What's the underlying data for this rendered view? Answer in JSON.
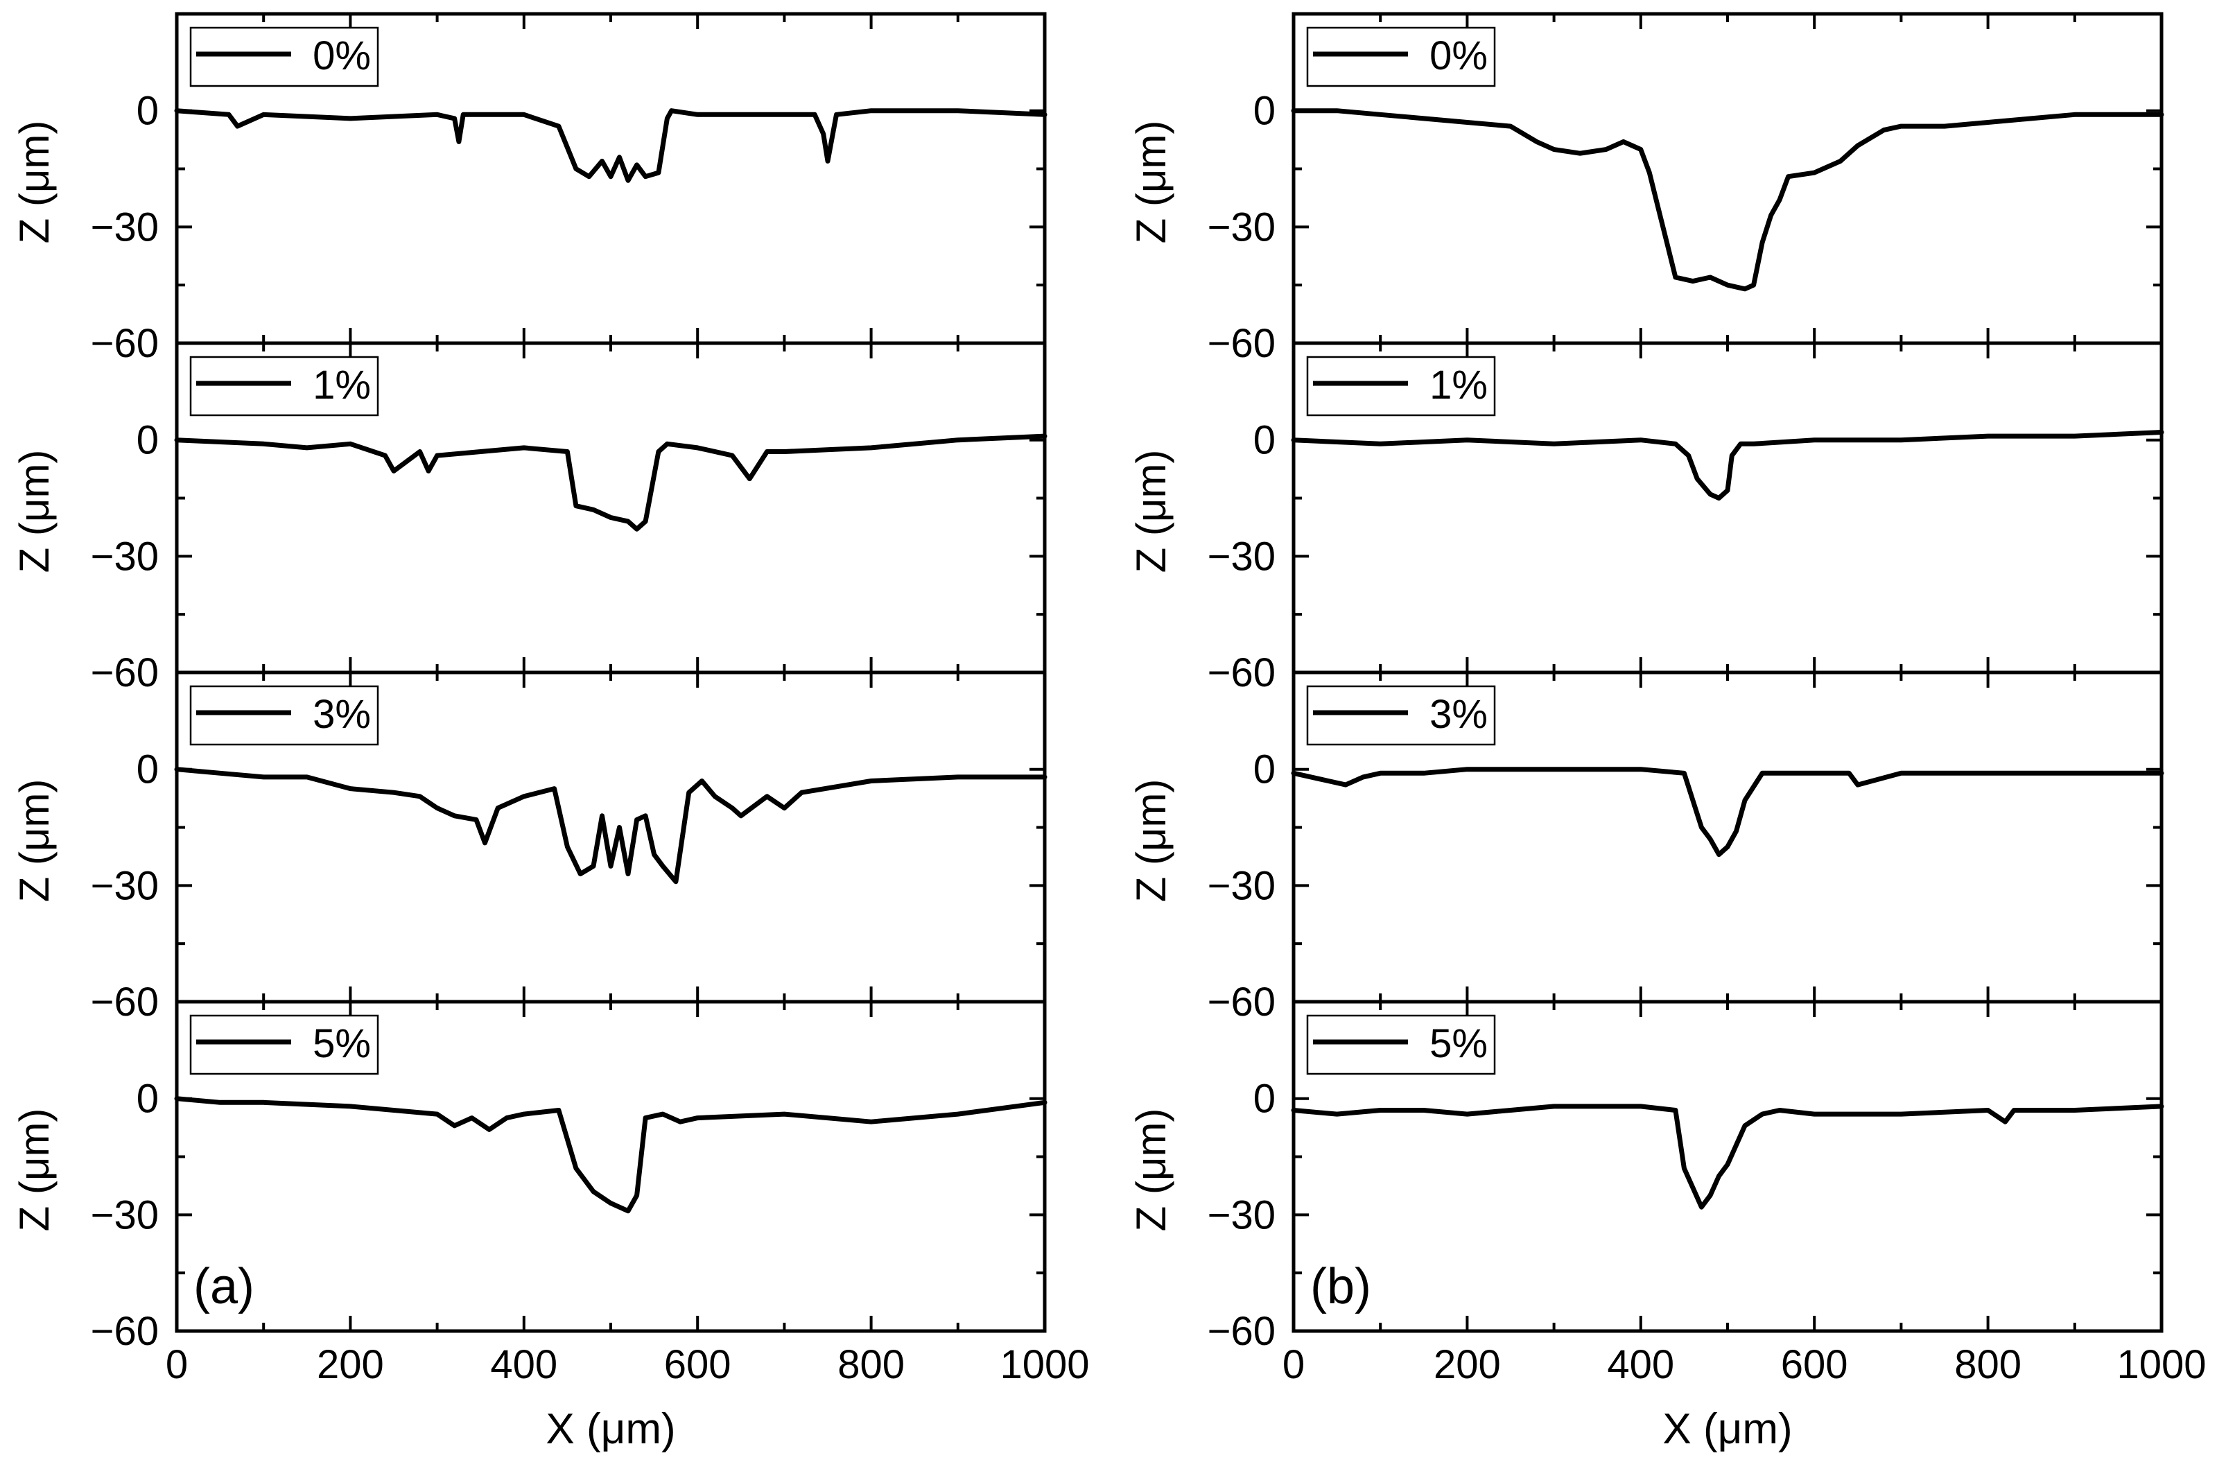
{
  "chart_data": [
    {
      "type": "line",
      "panel_label": "(a)",
      "xlabel": "X (μm)",
      "ylabel": "Z (μm)",
      "xlim": [
        0,
        1000
      ],
      "ylim": [
        -60,
        25
      ],
      "x_ticks": [
        0,
        200,
        400,
        600,
        800,
        1000
      ],
      "y_ticks": [
        0,
        -30,
        -60
      ],
      "grid": false,
      "legend_position": "top-left",
      "series": [
        {
          "name": "0%",
          "x": [
            0,
            60,
            70,
            100,
            200,
            300,
            320,
            325,
            330,
            400,
            440,
            460,
            475,
            490,
            500,
            510,
            520,
            530,
            540,
            555,
            565,
            570,
            600,
            700,
            735,
            745,
            750,
            760,
            800,
            900,
            1000
          ],
          "z": [
            0,
            -1,
            -4,
            -1,
            -2,
            -1,
            -2,
            -8,
            -1,
            -1,
            -4,
            -15,
            -17,
            -13,
            -17,
            -12,
            -18,
            -14,
            -17,
            -16,
            -2,
            0,
            -1,
            -1,
            -1,
            -6,
            -13,
            -1,
            0,
            0,
            -1
          ]
        },
        {
          "name": "1%",
          "x": [
            0,
            100,
            150,
            200,
            240,
            250,
            280,
            290,
            300,
            350,
            400,
            450,
            460,
            480,
            500,
            520,
            530,
            540,
            555,
            565,
            600,
            640,
            660,
            680,
            700,
            800,
            900,
            1000
          ],
          "z": [
            0,
            -1,
            -2,
            -1,
            -4,
            -8,
            -3,
            -8,
            -4,
            -3,
            -2,
            -3,
            -17,
            -18,
            -20,
            -21,
            -23,
            -21,
            -3,
            -1,
            -2,
            -4,
            -10,
            -3,
            -3,
            -2,
            0,
            1
          ]
        },
        {
          "name": "3%",
          "x": [
            0,
            50,
            100,
            150,
            200,
            250,
            280,
            300,
            320,
            345,
            355,
            370,
            400,
            435,
            450,
            465,
            480,
            490,
            500,
            510,
            520,
            530,
            540,
            550,
            560,
            575,
            590,
            605,
            620,
            640,
            650,
            680,
            700,
            720,
            800,
            900,
            1000
          ],
          "z": [
            0,
            -1,
            -2,
            -2,
            -5,
            -6,
            -7,
            -10,
            -12,
            -13,
            -19,
            -10,
            -7,
            -5,
            -20,
            -27,
            -25,
            -12,
            -25,
            -15,
            -27,
            -13,
            -12,
            -22,
            -25,
            -29,
            -6,
            -3,
            -7,
            -10,
            -12,
            -7,
            -10,
            -6,
            -3,
            -2,
            -2
          ]
        },
        {
          "name": "5%",
          "x": [
            0,
            50,
            100,
            200,
            300,
            320,
            340,
            360,
            380,
            400,
            440,
            460,
            480,
            500,
            520,
            530,
            540,
            560,
            580,
            600,
            700,
            750,
            800,
            900,
            1000
          ],
          "z": [
            0,
            -1,
            -1,
            -2,
            -4,
            -7,
            -5,
            -8,
            -5,
            -4,
            -3,
            -18,
            -24,
            -27,
            -29,
            -25,
            -5,
            -4,
            -6,
            -5,
            -4,
            -5,
            -6,
            -4,
            -1
          ]
        }
      ]
    },
    {
      "type": "line",
      "panel_label": "(b)",
      "xlabel": "X (μm)",
      "ylabel": "Z (μm)",
      "xlim": [
        0,
        1000
      ],
      "ylim": [
        -60,
        25
      ],
      "x_ticks": [
        0,
        200,
        400,
        600,
        800,
        1000
      ],
      "y_ticks": [
        0,
        -30,
        -60
      ],
      "grid": false,
      "legend_position": "top-left",
      "series": [
        {
          "name": "0%",
          "x": [
            0,
            50,
            100,
            200,
            250,
            280,
            300,
            330,
            360,
            380,
            390,
            400,
            410,
            420,
            430,
            440,
            460,
            480,
            500,
            520,
            530,
            540,
            550,
            560,
            570,
            600,
            630,
            650,
            680,
            700,
            750,
            800,
            850,
            900,
            950,
            1000
          ],
          "z": [
            0,
            0,
            -1,
            -3,
            -4,
            -8,
            -10,
            -11,
            -10,
            -8,
            -9,
            -10,
            -16,
            -25,
            -34,
            -43,
            -44,
            -43,
            -45,
            -46,
            -45,
            -34,
            -27,
            -23,
            -17,
            -16,
            -13,
            -9,
            -5,
            -4,
            -4,
            -3,
            -2,
            -1,
            -1,
            -1
          ]
        },
        {
          "name": "1%",
          "x": [
            0,
            100,
            200,
            300,
            400,
            440,
            455,
            465,
            480,
            490,
            500,
            505,
            515,
            530,
            600,
            700,
            800,
            900,
            1000
          ],
          "z": [
            0,
            -1,
            0,
            -1,
            0,
            -1,
            -4,
            -10,
            -14,
            -15,
            -13,
            -4,
            -1,
            -1,
            0,
            0,
            1,
            1,
            2
          ]
        },
        {
          "name": "3%",
          "x": [
            0,
            40,
            60,
            80,
            100,
            150,
            200,
            300,
            400,
            450,
            460,
            470,
            480,
            490,
            500,
            510,
            520,
            540,
            600,
            640,
            650,
            700,
            800,
            900,
            1000
          ],
          "z": [
            -1,
            -3,
            -4,
            -2,
            -1,
            -1,
            0,
            0,
            0,
            -1,
            -8,
            -15,
            -18,
            -22,
            -20,
            -16,
            -8,
            -1,
            -1,
            -1,
            -4,
            -1,
            -1,
            -1,
            -1
          ]
        },
        {
          "name": "5%",
          "x": [
            0,
            50,
            100,
            150,
            200,
            250,
            300,
            350,
            400,
            440,
            450,
            460,
            470,
            480,
            490,
            500,
            520,
            540,
            560,
            600,
            700,
            800,
            820,
            830,
            900,
            1000
          ],
          "z": [
            -3,
            -4,
            -3,
            -3,
            -4,
            -3,
            -2,
            -2,
            -2,
            -3,
            -18,
            -23,
            -28,
            -25,
            -20,
            -17,
            -7,
            -4,
            -3,
            -4,
            -4,
            -3,
            -6,
            -3,
            -3,
            -2
          ]
        }
      ]
    }
  ]
}
